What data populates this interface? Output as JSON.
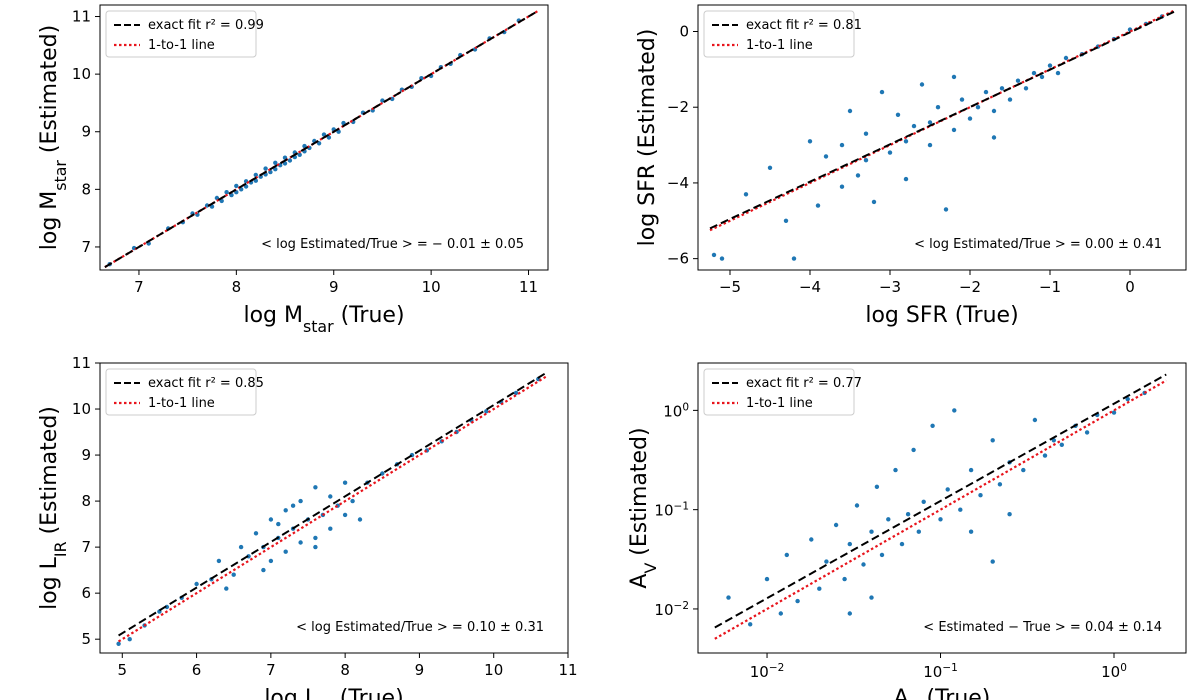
{
  "chart_data": [
    {
      "type": "scatter",
      "scale": "linear",
      "xlabel": {
        "pre": "log M",
        "sub": "star",
        "post": " (True)"
      },
      "ylabel": {
        "pre": "log M",
        "sub": "star",
        "post": " (Estimated)"
      },
      "xlim": [
        6.6,
        11.2
      ],
      "ylim": [
        6.6,
        11.2
      ],
      "xticks": [
        "7",
        "8",
        "9",
        "10",
        "11"
      ],
      "yticks": [
        "7",
        "8",
        "9",
        "10",
        "11"
      ],
      "xtick_values": [
        7,
        8,
        9,
        10,
        11
      ],
      "ytick_values": [
        7,
        8,
        9,
        10,
        11
      ],
      "legend": {
        "placement": "top-left",
        "fit_label": "exact fit r² = 0.99",
        "one_to_one_label": "1-to-1 line"
      },
      "fit_line": {
        "x": [
          6.65,
          11.1
        ],
        "y": [
          6.65,
          11.1
        ]
      },
      "one_to_one": {
        "x": [
          6.65,
          11.1
        ],
        "y": [
          6.65,
          11.1
        ]
      },
      "annotation": "< log Estimated/True > = − 0.01 ± 0.05",
      "stats": {
        "mean": -0.01,
        "std": 0.05,
        "r2": 0.99
      },
      "scatter_color": "#1f77b4",
      "points": [
        [
          6.7,
          6.7
        ],
        [
          6.95,
          6.98
        ],
        [
          7.1,
          7.06
        ],
        [
          7.3,
          7.32
        ],
        [
          7.45,
          7.43
        ],
        [
          7.55,
          7.58
        ],
        [
          7.6,
          7.56
        ],
        [
          7.7,
          7.72
        ],
        [
          7.75,
          7.7
        ],
        [
          7.8,
          7.85
        ],
        [
          7.85,
          7.8
        ],
        [
          7.9,
          7.95
        ],
        [
          7.95,
          7.9
        ],
        [
          8.0,
          8.06
        ],
        [
          8.0,
          7.95
        ],
        [
          8.05,
          8.0
        ],
        [
          8.1,
          8.14
        ],
        [
          8.1,
          8.05
        ],
        [
          8.15,
          8.12
        ],
        [
          8.2,
          8.25
        ],
        [
          8.2,
          8.15
        ],
        [
          8.25,
          8.22
        ],
        [
          8.3,
          8.36
        ],
        [
          8.3,
          8.26
        ],
        [
          8.35,
          8.3
        ],
        [
          8.4,
          8.46
        ],
        [
          8.4,
          8.35
        ],
        [
          8.45,
          8.42
        ],
        [
          8.5,
          8.55
        ],
        [
          8.5,
          8.45
        ],
        [
          8.55,
          8.5
        ],
        [
          8.6,
          8.64
        ],
        [
          8.6,
          8.56
        ],
        [
          8.65,
          8.6
        ],
        [
          8.7,
          8.75
        ],
        [
          8.7,
          8.66
        ],
        [
          8.75,
          8.72
        ],
        [
          8.8,
          8.84
        ],
        [
          8.85,
          8.8
        ],
        [
          8.9,
          8.95
        ],
        [
          8.95,
          8.9
        ],
        [
          9.0,
          9.04
        ],
        [
          9.05,
          9.0
        ],
        [
          9.1,
          9.15
        ],
        [
          9.2,
          9.17
        ],
        [
          9.3,
          9.33
        ],
        [
          9.4,
          9.37
        ],
        [
          9.5,
          9.54
        ],
        [
          9.6,
          9.57
        ],
        [
          9.7,
          9.73
        ],
        [
          9.8,
          9.78
        ],
        [
          9.9,
          9.93
        ],
        [
          10.0,
          9.97
        ],
        [
          10.1,
          10.12
        ],
        [
          10.2,
          10.18
        ],
        [
          10.3,
          10.33
        ],
        [
          10.45,
          10.43
        ],
        [
          10.6,
          10.62
        ],
        [
          10.75,
          10.73
        ],
        [
          10.9,
          10.93
        ]
      ]
    },
    {
      "type": "scatter",
      "scale": "linear",
      "xlabel": {
        "pre": "log SFR",
        "sub": "",
        "post": " (True)"
      },
      "ylabel": {
        "pre": "log SFR",
        "sub": "",
        "post": " (Estimated)"
      },
      "xlim": [
        -5.4,
        0.7
      ],
      "ylim": [
        -6.3,
        0.7
      ],
      "xticks": [
        "−5",
        "−4",
        "−3",
        "−2",
        "−1",
        "0"
      ],
      "yticks": [
        "−6",
        "−4",
        "−2",
        "0"
      ],
      "xtick_values": [
        -5,
        -4,
        -3,
        -2,
        -1,
        0
      ],
      "ytick_values": [
        -6,
        -4,
        -2,
        0
      ],
      "legend": {
        "placement": "top-left",
        "fit_label": "exact fit r² = 0.81",
        "one_to_one_label": "1-to-1 line"
      },
      "fit_line": {
        "x": [
          -5.25,
          0.55
        ],
        "y": [
          -5.2,
          0.52
        ]
      },
      "one_to_one": {
        "x": [
          -5.25,
          0.55
        ],
        "y": [
          -5.25,
          0.55
        ]
      },
      "annotation": "< log Estimated/True > = 0.00 ± 0.41",
      "stats": {
        "mean": 0.0,
        "std": 0.41,
        "r2": 0.81
      },
      "scatter_color": "#1f77b4",
      "points": [
        [
          -5.2,
          -5.9
        ],
        [
          -5.1,
          -6.0
        ],
        [
          -4.8,
          -4.3
        ],
        [
          -4.5,
          -3.6
        ],
        [
          -4.3,
          -5.0
        ],
        [
          -4.2,
          -6.0
        ],
        [
          -4.0,
          -2.9
        ],
        [
          -3.9,
          -4.6
        ],
        [
          -3.8,
          -3.3
        ],
        [
          -3.6,
          -4.1
        ],
        [
          -3.5,
          -2.1
        ],
        [
          -3.4,
          -3.8
        ],
        [
          -3.3,
          -2.7
        ],
        [
          -3.2,
          -4.5
        ],
        [
          -3.1,
          -1.6
        ],
        [
          -3.0,
          -3.2
        ],
        [
          -2.9,
          -2.2
        ],
        [
          -2.8,
          -3.9
        ],
        [
          -2.7,
          -2.5
        ],
        [
          -2.6,
          -1.4
        ],
        [
          -2.5,
          -3.0
        ],
        [
          -2.4,
          -2.0
        ],
        [
          -2.3,
          -4.7
        ],
        [
          -2.2,
          -2.6
        ],
        [
          -2.1,
          -1.8
        ],
        [
          -2.0,
          -2.3
        ],
        [
          -1.9,
          -2.0
        ],
        [
          -1.8,
          -1.6
        ],
        [
          -1.7,
          -2.1
        ],
        [
          -1.6,
          -1.5
        ],
        [
          -1.5,
          -1.8
        ],
        [
          -1.4,
          -1.3
        ],
        [
          -1.3,
          -1.5
        ],
        [
          -1.2,
          -1.1
        ],
        [
          -1.1,
          -1.2
        ],
        [
          -1.0,
          -0.9
        ],
        [
          -0.9,
          -1.1
        ],
        [
          -0.8,
          -0.7
        ],
        [
          -0.6,
          -0.6
        ],
        [
          -0.4,
          -0.4
        ],
        [
          -0.2,
          -0.2
        ],
        [
          0.0,
          0.05
        ],
        [
          0.2,
          0.2
        ],
        [
          0.4,
          0.4
        ],
        [
          -2.5,
          -2.4
        ],
        [
          -2.8,
          -2.9
        ],
        [
          -3.3,
          -3.4
        ],
        [
          -2.2,
          -1.2
        ],
        [
          -1.7,
          -2.8
        ],
        [
          -3.6,
          -3.0
        ]
      ]
    },
    {
      "type": "scatter",
      "scale": "linear",
      "xlabel": {
        "pre": "log L",
        "sub": "IR",
        "post": " (True)"
      },
      "ylabel": {
        "pre": "log L",
        "sub": "IR",
        "post": " (Estimated)"
      },
      "xlim": [
        4.7,
        11.0
      ],
      "ylim": [
        4.7,
        11.0
      ],
      "xticks": [
        "5",
        "6",
        "7",
        "8",
        "9",
        "10",
        "11"
      ],
      "yticks": [
        "5",
        "6",
        "7",
        "8",
        "9",
        "10",
        "11"
      ],
      "xtick_values": [
        5,
        6,
        7,
        8,
        9,
        10,
        11
      ],
      "ytick_values": [
        5,
        6,
        7,
        8,
        9,
        10,
        11
      ],
      "legend": {
        "placement": "top-left",
        "fit_label": "exact fit r² = 0.85",
        "one_to_one_label": "1-to-1 line"
      },
      "fit_line": {
        "x": [
          4.95,
          10.7
        ],
        "y": [
          5.08,
          10.78
        ]
      },
      "one_to_one": {
        "x": [
          4.95,
          10.7
        ],
        "y": [
          4.95,
          10.7
        ]
      },
      "annotation": "< log Estimated/True > = 0.10 ± 0.31",
      "stats": {
        "mean": 0.1,
        "std": 0.31,
        "r2": 0.85
      },
      "scatter_color": "#1f77b4",
      "points": [
        [
          4.95,
          4.9
        ],
        [
          5.1,
          5.0
        ],
        [
          5.3,
          5.3
        ],
        [
          5.5,
          5.6
        ],
        [
          5.6,
          5.7
        ],
        [
          5.8,
          5.9
        ],
        [
          6.0,
          6.2
        ],
        [
          6.2,
          6.3
        ],
        [
          6.3,
          6.7
        ],
        [
          6.5,
          6.4
        ],
        [
          6.6,
          7.0
        ],
        [
          6.7,
          6.8
        ],
        [
          6.8,
          7.3
        ],
        [
          6.9,
          7.0
        ],
        [
          7.0,
          7.6
        ],
        [
          7.0,
          6.7
        ],
        [
          7.1,
          7.2
        ],
        [
          7.2,
          7.8
        ],
        [
          7.2,
          6.9
        ],
        [
          7.3,
          7.4
        ],
        [
          7.4,
          8.0
        ],
        [
          7.4,
          7.1
        ],
        [
          7.5,
          7.6
        ],
        [
          7.6,
          8.3
        ],
        [
          7.6,
          7.2
        ],
        [
          7.7,
          7.7
        ],
        [
          7.8,
          8.1
        ],
        [
          7.8,
          7.4
        ],
        [
          7.9,
          7.9
        ],
        [
          8.0,
          8.4
        ],
        [
          8.1,
          8.0
        ],
        [
          8.2,
          7.6
        ],
        [
          8.3,
          8.4
        ],
        [
          8.5,
          8.6
        ],
        [
          8.7,
          8.8
        ],
        [
          8.9,
          9.0
        ],
        [
          9.1,
          9.1
        ],
        [
          9.3,
          9.3
        ],
        [
          9.5,
          9.5
        ],
        [
          9.7,
          9.75
        ],
        [
          9.9,
          9.95
        ],
        [
          10.1,
          10.15
        ],
        [
          10.3,
          10.35
        ],
        [
          10.6,
          10.65
        ],
        [
          7.3,
          7.9
        ],
        [
          7.6,
          7.0
        ],
        [
          6.9,
          6.5
        ],
        [
          8.0,
          7.7
        ],
        [
          7.1,
          7.5
        ],
        [
          6.4,
          6.1
        ]
      ]
    },
    {
      "type": "scatter",
      "scale": "log",
      "xlabel": {
        "pre": "A",
        "sub": "V",
        "post": " (True)"
      },
      "ylabel": {
        "pre": "A",
        "sub": "V",
        "post": " (Estimated)"
      },
      "xlim": [
        0.004,
        2.6
      ],
      "ylim": [
        0.0036,
        3.0
      ],
      "xticks": [
        {
          "base": "10",
          "exp": "−2"
        },
        {
          "base": "10",
          "exp": "−1"
        },
        {
          "base": "10",
          "exp": "0"
        }
      ],
      "yticks": [
        {
          "base": "10",
          "exp": "−2"
        },
        {
          "base": "10",
          "exp": "−1"
        },
        {
          "base": "10",
          "exp": "0"
        }
      ],
      "xtick_values": [
        0.01,
        0.1,
        1
      ],
      "ytick_values": [
        0.01,
        0.1,
        1
      ],
      "legend": {
        "placement": "top-left",
        "fit_label": "exact fit r² = 0.77",
        "one_to_one_label": "1-to-1 line"
      },
      "fit_line": {
        "x": [
          0.005,
          2.0
        ],
        "y": [
          0.0065,
          2.3
        ]
      },
      "one_to_one": {
        "x": [
          0.005,
          2.0
        ],
        "y": [
          0.005,
          2.0
        ]
      },
      "annotation": "< Estimated − True > = 0.04 ± 0.14",
      "stats": {
        "mean": 0.04,
        "std": 0.14,
        "r2": 0.77
      },
      "scatter_color": "#1f77b4",
      "points": [
        [
          0.006,
          0.013
        ],
        [
          0.008,
          0.007
        ],
        [
          0.01,
          0.02
        ],
        [
          0.012,
          0.009
        ],
        [
          0.013,
          0.035
        ],
        [
          0.015,
          0.012
        ],
        [
          0.018,
          0.05
        ],
        [
          0.02,
          0.016
        ],
        [
          0.022,
          0.03
        ],
        [
          0.025,
          0.07
        ],
        [
          0.028,
          0.02
        ],
        [
          0.03,
          0.045
        ],
        [
          0.033,
          0.11
        ],
        [
          0.036,
          0.028
        ],
        [
          0.04,
          0.06
        ],
        [
          0.043,
          0.17
        ],
        [
          0.046,
          0.035
        ],
        [
          0.05,
          0.08
        ],
        [
          0.055,
          0.25
        ],
        [
          0.06,
          0.045
        ],
        [
          0.065,
          0.09
        ],
        [
          0.07,
          0.4
        ],
        [
          0.075,
          0.06
        ],
        [
          0.08,
          0.12
        ],
        [
          0.09,
          0.7
        ],
        [
          0.1,
          0.08
        ],
        [
          0.11,
          0.16
        ],
        [
          0.12,
          1.0
        ],
        [
          0.13,
          0.1
        ],
        [
          0.15,
          0.25
        ],
        [
          0.17,
          0.14
        ],
        [
          0.2,
          0.5
        ],
        [
          0.22,
          0.18
        ],
        [
          0.25,
          0.3
        ],
        [
          0.3,
          0.25
        ],
        [
          0.35,
          0.8
        ],
        [
          0.4,
          0.35
        ],
        [
          0.45,
          0.5
        ],
        [
          0.5,
          0.45
        ],
        [
          0.6,
          0.7
        ],
        [
          0.7,
          0.6
        ],
        [
          0.8,
          0.9
        ],
        [
          1.0,
          0.95
        ],
        [
          1.2,
          1.3
        ],
        [
          1.5,
          1.5
        ],
        [
          0.15,
          0.06
        ],
        [
          0.04,
          0.013
        ],
        [
          0.03,
          0.009
        ],
        [
          0.25,
          0.09
        ],
        [
          0.2,
          0.03
        ]
      ]
    }
  ]
}
